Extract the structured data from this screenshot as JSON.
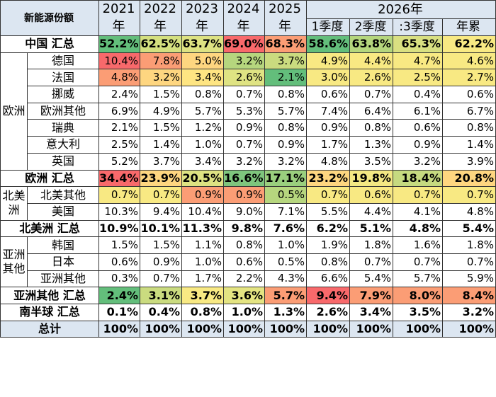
{
  "header": {
    "title": "新能源份额",
    "years": [
      "2021\n年",
      "2022\n年",
      "2023\n年",
      "2024\n年",
      "2025\n年"
    ],
    "year_2026": "2026年",
    "quarters": [
      "1季度",
      "2季度",
      ":3季度",
      "年累"
    ]
  },
  "rows": [
    {
      "type": "total",
      "label": "中国 汇总",
      "values": [
        "52.2%",
        "62.5%",
        "63.7%",
        "69.0%",
        "68.3%",
        "58.6%",
        "63.8%",
        "65.3%",
        "62.2%"
      ],
      "colors": [
        "#63be7b",
        "#d4e07f",
        "#dde282",
        "#f8696b",
        "#fb9d75",
        "#63be7b",
        "#b5d67d",
        "#d9e081",
        "#f8e983"
      ]
    },
    {
      "type": "sub",
      "region": "欧洲",
      "label": "德国",
      "values": [
        "10.4%",
        "7.8%",
        "5.0%",
        "3.2%",
        "3.7%",
        "4.9%",
        "4.4%",
        "4.7%",
        "4.6%"
      ],
      "colors": [
        "#f8696b",
        "#fb9d75",
        "#fed680",
        "#b6d67e",
        "#cadb7f",
        "#f8e983",
        "#f8e983",
        "#f8e983",
        "#f8e983"
      ]
    },
    {
      "type": "sub",
      "label": "法国",
      "values": [
        "4.8%",
        "3.2%",
        "3.4%",
        "2.6%",
        "2.1%",
        "3.0%",
        "2.6%",
        "2.5%",
        "2.7%"
      ],
      "colors": [
        "#fb9d75",
        "#fed680",
        "#fee582",
        "#dfe383",
        "#63be7b",
        "#f8e983",
        "#f8e983",
        "#f8e983",
        "#f8e983"
      ]
    },
    {
      "type": "sub",
      "label": "挪威",
      "values": [
        "2.4%",
        "1.5%",
        "0.8%",
        "0.7%",
        "0.8%",
        "0.6%",
        "0.7%",
        "0.4%",
        "0.6%"
      ]
    },
    {
      "type": "sub",
      "label": "欧洲其他",
      "values": [
        "6.9%",
        "4.9%",
        "5.7%",
        "5.3%",
        "5.7%",
        "7.4%",
        "6.4%",
        "6.1%",
        "6.7%"
      ]
    },
    {
      "type": "sub",
      "label": "瑞典",
      "values": [
        "2.1%",
        "1.5%",
        "1.2%",
        "0.9%",
        "0.8%",
        "0.9%",
        "0.8%",
        "0.6%",
        "0.8%"
      ]
    },
    {
      "type": "sub",
      "label": "意大利",
      "values": [
        "2.5%",
        "1.4%",
        "1.0%",
        "0.7%",
        "0.9%",
        "1.7%",
        "1.3%",
        "0.9%",
        "1.4%"
      ]
    },
    {
      "type": "sub",
      "label": "英国",
      "values": [
        "5.2%",
        "3.7%",
        "3.4%",
        "3.2%",
        "3.2%",
        "4.8%",
        "3.5%",
        "3.2%",
        "3.9%"
      ]
    },
    {
      "type": "total",
      "label": "欧洲 汇总",
      "values": [
        "34.4%",
        "23.9%",
        "20.5%",
        "16.6%",
        "17.1%",
        "23.2%",
        "19.8%",
        "18.4%",
        "20.8%"
      ],
      "colors": [
        "#f8696b",
        "#fed680",
        "#dde282",
        "#7ec57d",
        "#9acf7e",
        "#fed680",
        "#f3e883",
        "#c6da80",
        "#fed680"
      ]
    },
    {
      "type": "sub",
      "region": "北美洲",
      "label": "北美其他",
      "values": [
        "0.7%",
        "0.7%",
        "0.9%",
        "0.9%",
        "0.5%",
        "0.7%",
        "0.6%",
        "0.7%",
        "0.7%"
      ],
      "colors": [
        "#f8e983",
        "#f8e983",
        "#fb9d75",
        "#fb9d75",
        "#b6d67e",
        "#f8e983",
        "#f8e983",
        "#f8e983",
        "#f8e983"
      ]
    },
    {
      "type": "sub",
      "label": "美国",
      "values": [
        "10.3%",
        "9.4%",
        "10.4%",
        "9.0%",
        "7.1%",
        "5.5%",
        "4.4%",
        "4.1%",
        "4.8%"
      ]
    },
    {
      "type": "total",
      "label": "北美洲 汇总",
      "values": [
        "10.9%",
        "10.1%",
        "11.3%",
        "9.8%",
        "7.6%",
        "6.2%",
        "5.1%",
        "4.8%",
        "5.4%"
      ]
    },
    {
      "type": "sub",
      "region": "亚洲其他",
      "label": "韩国",
      "values": [
        "1.5%",
        "1.5%",
        "1.1%",
        "0.8%",
        "1.0%",
        "1.9%",
        "1.8%",
        "1.6%",
        "1.8%"
      ]
    },
    {
      "type": "sub",
      "label": "日本",
      "values": [
        "0.6%",
        "0.9%",
        "1.0%",
        "0.6%",
        "0.5%",
        "0.8%",
        "0.7%",
        "0.7%",
        "0.7%"
      ]
    },
    {
      "type": "sub",
      "label": "亚洲其他",
      "values": [
        "0.3%",
        "0.7%",
        "1.7%",
        "2.2%",
        "4.3%",
        "6.6%",
        "5.4%",
        "5.7%",
        "5.9%"
      ]
    },
    {
      "type": "total",
      "label": "亚洲其他 汇总",
      "values": [
        "2.4%",
        "3.1%",
        "3.7%",
        "3.6%",
        "5.7%",
        "9.4%",
        "7.9%",
        "8.0%",
        "8.4%"
      ],
      "colors": [
        "#63be7b",
        "#cadb7f",
        "#f8e983",
        "#e4e482",
        "#fb9d75",
        "#f8696b",
        "#fb9d75",
        "#fb9d75",
        "#fb9d75"
      ]
    },
    {
      "type": "total",
      "label": "南半球 汇总",
      "values": [
        "0.1%",
        "0.4%",
        "0.8%",
        "1.0%",
        "1.3%",
        "2.6%",
        "3.4%",
        "3.5%",
        "3.2%"
      ]
    },
    {
      "type": "grand",
      "label": "总计",
      "values": [
        "100%",
        "100%",
        "100%",
        "100%",
        "100%",
        "100%",
        "100%",
        "100%",
        "100%"
      ]
    }
  ]
}
